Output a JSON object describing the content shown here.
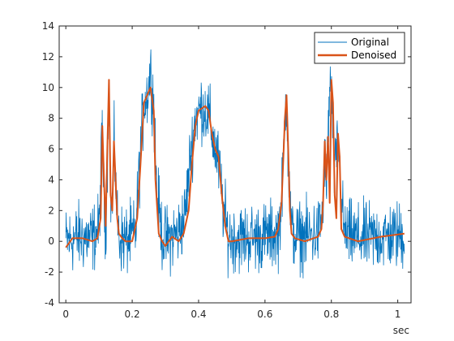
{
  "chart_data": {
    "type": "line",
    "xlabel": "sec",
    "ylabel": "",
    "xlim": [
      -0.02,
      1.04
    ],
    "ylim": [
      -4,
      14
    ],
    "xticks": [
      0,
      0.2,
      0.4,
      0.6,
      0.8,
      1
    ],
    "xtick_labels": [
      "0",
      "0.2",
      "0.4",
      "0.6",
      "0.8",
      "1"
    ],
    "yticks": [
      -4,
      -2,
      0,
      2,
      4,
      6,
      8,
      10,
      12,
      14
    ],
    "ytick_labels": [
      "-4",
      "-2",
      "0",
      "2",
      "4",
      "6",
      "8",
      "10",
      "12",
      "14"
    ],
    "grid": false,
    "legend_position": "top-right",
    "series": [
      {
        "name": "Original",
        "color": "#0072BD",
        "noise_amplitude": 1.1,
        "x": [
          0,
          0.04,
          0.08,
          0.1,
          0.11,
          0.115,
          0.12,
          0.125,
          0.13,
          0.135,
          0.14,
          0.145,
          0.15,
          0.155,
          0.16,
          0.18,
          0.21,
          0.22,
          0.235,
          0.245,
          0.255,
          0.265,
          0.275,
          0.29,
          0.3,
          0.34,
          0.36,
          0.375,
          0.39,
          0.41,
          0.43,
          0.445,
          0.46,
          0.475,
          0.49,
          0.52,
          0.6,
          0.64,
          0.65,
          0.66,
          0.665,
          0.67,
          0.68,
          0.7,
          0.76,
          0.775,
          0.78,
          0.785,
          0.79,
          0.795,
          0.8,
          0.81,
          0.82,
          0.83,
          0.84,
          0.88,
          0.95,
          1.02
        ],
        "y": [
          0,
          0.3,
          0.2,
          0.8,
          7.5,
          2.5,
          0.5,
          5,
          10.5,
          3,
          2,
          6.5,
          4,
          1.5,
          0.3,
          0,
          0.5,
          4,
          9,
          9.5,
          11,
          9,
          3,
          0.4,
          0,
          0.6,
          1.8,
          5.5,
          8,
          8.8,
          8.2,
          6.5,
          5,
          2,
          0.3,
          0.2,
          0.3,
          0.5,
          2.5,
          8,
          9.5,
          5,
          0.5,
          0.3,
          0.5,
          2,
          6,
          3,
          7,
          10,
          9.8,
          4,
          7,
          2.5,
          0.5,
          0.2,
          0.3,
          0.4
        ]
      },
      {
        "name": "Denoised",
        "color": "#D95319",
        "x": [
          0,
          0.02,
          0.05,
          0.08,
          0.095,
          0.105,
          0.11,
          0.115,
          0.12,
          0.125,
          0.13,
          0.135,
          0.14,
          0.145,
          0.15,
          0.155,
          0.16,
          0.17,
          0.18,
          0.2,
          0.215,
          0.225,
          0.235,
          0.245,
          0.255,
          0.265,
          0.27,
          0.28,
          0.29,
          0.3,
          0.32,
          0.34,
          0.355,
          0.37,
          0.38,
          0.39,
          0.4,
          0.42,
          0.43,
          0.44,
          0.45,
          0.46,
          0.47,
          0.48,
          0.49,
          0.5,
          0.55,
          0.6,
          0.63,
          0.64,
          0.65,
          0.66,
          0.665,
          0.67,
          0.675,
          0.68,
          0.69,
          0.72,
          0.76,
          0.77,
          0.775,
          0.78,
          0.785,
          0.79,
          0.795,
          0.8,
          0.805,
          0.81,
          0.815,
          0.82,
          0.825,
          0.83,
          0.84,
          0.88,
          0.95,
          1.02
        ],
        "y": [
          -0.4,
          0.2,
          0.2,
          0,
          0.2,
          1.5,
          7.5,
          4,
          1,
          6,
          10.5,
          3,
          2,
          6.5,
          4,
          1.5,
          0.5,
          0.2,
          0,
          0,
          1.5,
          5,
          9,
          9.5,
          10,
          8.5,
          4,
          0.5,
          0,
          -0.3,
          0.3,
          0,
          0.5,
          2,
          5,
          7.5,
          8.5,
          8.8,
          8.5,
          7,
          6,
          5.5,
          3,
          1,
          0,
          0,
          0.2,
          0.2,
          0.3,
          0.8,
          2.5,
          8,
          9.5,
          6,
          2,
          0.5,
          0.2,
          0,
          0.3,
          0.8,
          2.5,
          6.5,
          4,
          6.8,
          2.5,
          10.5,
          9,
          3,
          1.5,
          7,
          5.5,
          0.8,
          0.3,
          0,
          0.3,
          0.5
        ]
      }
    ]
  }
}
